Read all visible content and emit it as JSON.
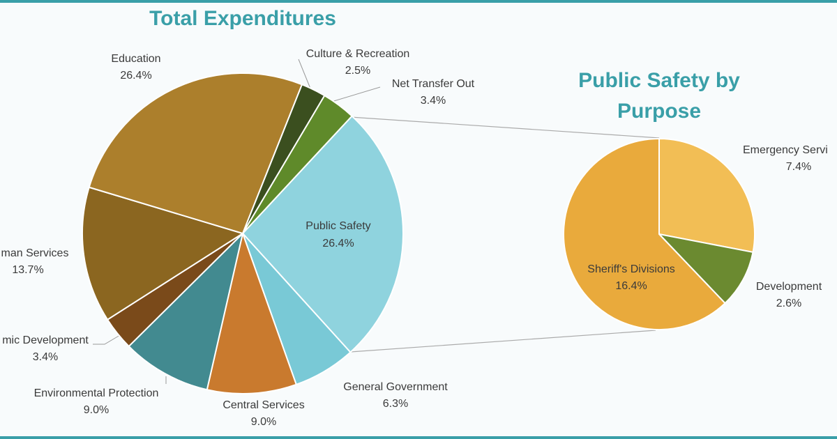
{
  "chart_data": [
    {
      "type": "pie",
      "title": "Total Expenditures",
      "categories": [
        "Public Safety",
        "General Government",
        "Central Services",
        "Environmental Protection",
        "mic Development",
        "man Services",
        "Education",
        "Culture & Recreation",
        "Net Transfer Out"
      ],
      "values": [
        26.4,
        6.3,
        9,
        9,
        3.4,
        13.7,
        26.4,
        2.5,
        3.4
      ],
      "value_labels": [
        "26.4%",
        "6.3%",
        "9.0%",
        "9.0%",
        "3.4%",
        "13.7%",
        "26.4%",
        "2.5%",
        "3.4%"
      ],
      "colors": [
        "#8fd3de",
        "#79c9d6",
        "#c97a2e",
        "#428a90",
        "#7a4a1a",
        "#8b6620",
        "#ac7f2c",
        "#3b4f1f",
        "#5f8a2a"
      ]
    },
    {
      "type": "pie",
      "title": "Public Safety by Purpose",
      "categories": [
        "Emergency Servi",
        "Development",
        "Sheriff's Divisions"
      ],
      "values": [
        7.4,
        2.6,
        16.4
      ],
      "value_labels": [
        "7.4%",
        "2.6%",
        "16.4%"
      ],
      "colors": [
        "#f2be55",
        "#6b8a30",
        "#e9aa3c"
      ]
    }
  ]
}
